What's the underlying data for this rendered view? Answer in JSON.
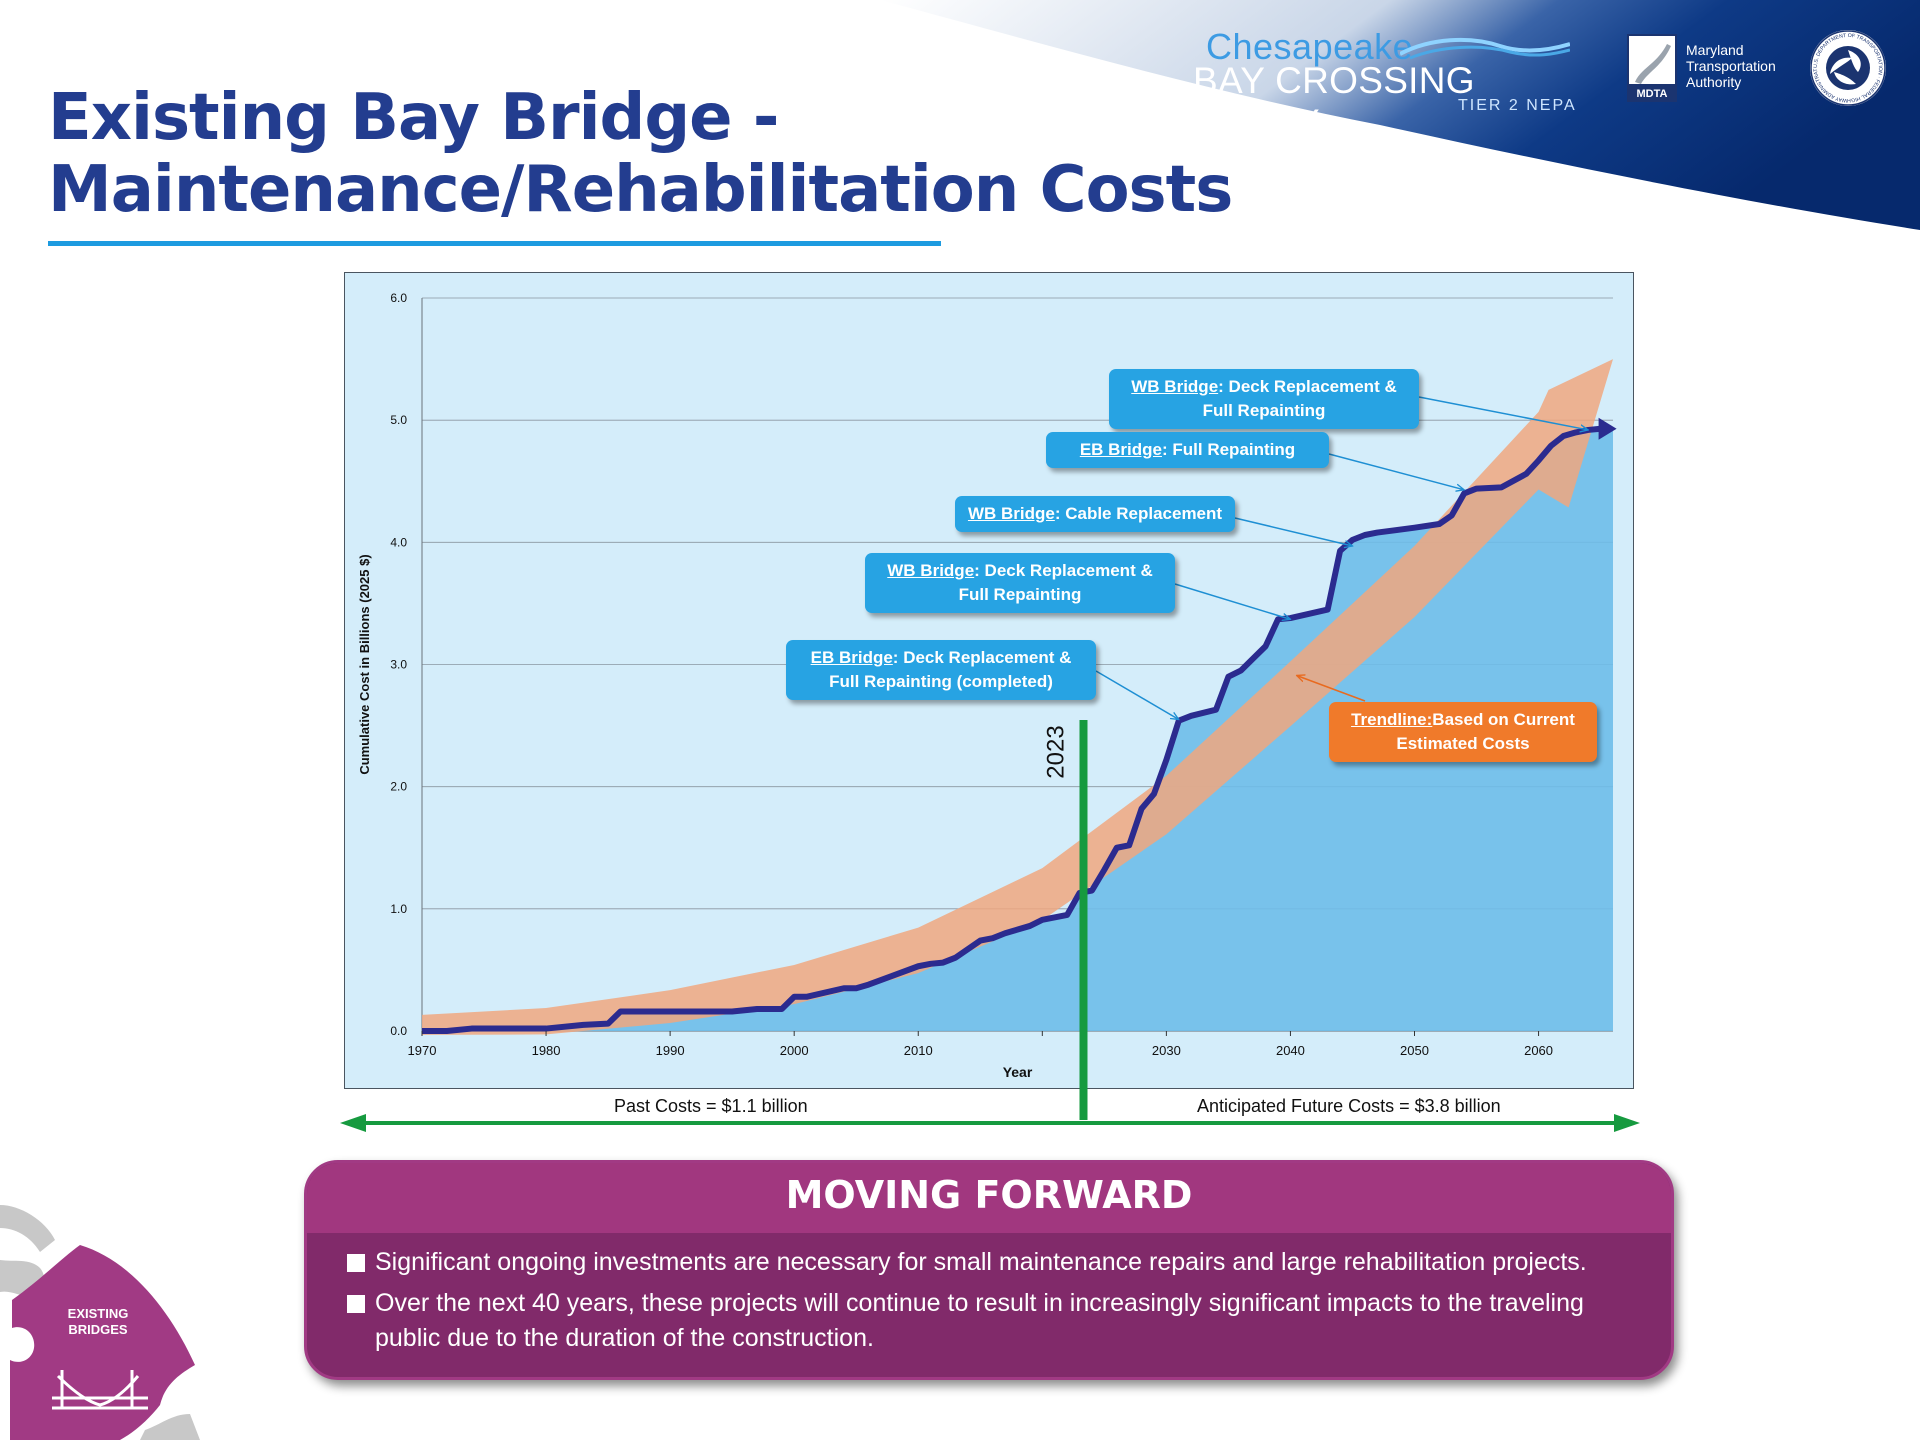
{
  "header": {
    "study_name_line1": "Chesapeake",
    "study_name_line2": "BAY CROSSING STUDY",
    "study_name_line3": "TIER 2 NEPA",
    "mdta_badge": "MDTA",
    "agency_line1": "Maryland",
    "agency_line2": "Transportation",
    "agency_line3": "Authority",
    "seal_text": "U.S. DEPARTMENT OF TRANSPORTATION · FEDERAL HIGHWAY ADMINISTRATION"
  },
  "title": {
    "line1": "Existing Bay Bridge -",
    "line2": "Maintenance/Rehabilitation Costs"
  },
  "colors": {
    "title": "#233d8f",
    "underline": "#1d9be0",
    "line": "#2b2b8f",
    "area": "#6ebde9",
    "trend": "#f0a77f",
    "marker_2023": "#169a3f",
    "callout_blue": "#27a3e3",
    "callout_orange": "#f07a2a",
    "panel": "#812a6a"
  },
  "chart_data": {
    "type": "line",
    "title": "",
    "xlabel": "Year",
    "ylabel": "Cumulative Cost in Billions (2025 $)",
    "xlim": [
      1970,
      2066
    ],
    "ylim": [
      0,
      6
    ],
    "x_ticks": [
      "1970",
      "1980",
      "1990",
      "2000",
      "2010",
      "2030",
      "2040",
      "2050",
      "2060"
    ],
    "y_ticks": [
      "0.0",
      "1.0",
      "2.0",
      "3.0",
      "4.0",
      "5.0",
      "6.0"
    ],
    "grid": true,
    "series": [
      {
        "x": [
          1970,
          1972,
          1974,
          1980,
          1983,
          1985,
          1986,
          1995,
          1997,
          1999,
          2000,
          2001,
          2004,
          2005,
          2006,
          2010,
          2011,
          2012,
          2013,
          2015,
          2016,
          2017,
          2019,
          2020,
          2022,
          2023,
          2024,
          2025,
          2026,
          2027,
          2028,
          2029,
          2030,
          2031,
          2032,
          2034,
          2035,
          2036,
          2037,
          2038,
          2039,
          2040,
          2043,
          2044,
          2045,
          2046,
          2047,
          2050,
          2052,
          2053,
          2054,
          2055,
          2057,
          2059,
          2060,
          2061,
          2062,
          2063,
          2064,
          2065
        ],
        "y": [
          0.0,
          0.0,
          0.02,
          0.02,
          0.05,
          0.06,
          0.16,
          0.16,
          0.18,
          0.18,
          0.28,
          0.28,
          0.35,
          0.35,
          0.38,
          0.53,
          0.55,
          0.56,
          0.6,
          0.74,
          0.76,
          0.8,
          0.86,
          0.91,
          0.95,
          1.13,
          1.15,
          1.32,
          1.5,
          1.52,
          1.82,
          1.94,
          2.22,
          2.54,
          2.58,
          2.63,
          2.9,
          2.95,
          3.05,
          3.15,
          3.37,
          3.38,
          3.45,
          3.93,
          4.02,
          4.06,
          4.08,
          4.12,
          4.15,
          4.22,
          4.4,
          4.44,
          4.45,
          4.56,
          4.67,
          4.79,
          4.87,
          4.9,
          4.92,
          4.93
        ]
      }
    ],
    "trendline": {
      "label_name": "Trendline:",
      "label_text": "Based on Current Estimated Costs",
      "x": [
        1970,
        1980,
        1990,
        2000,
        2010,
        2020,
        2030,
        2040,
        2050,
        2060,
        2066
      ],
      "y": [
        0.05,
        0.08,
        0.2,
        0.38,
        0.66,
        1.12,
        1.85,
        2.76,
        3.68,
        4.75,
        5.5
      ]
    },
    "marker_year": "2023",
    "annotations": [
      {
        "name": "WB Bridge",
        "text": "Deck Replacement & Full Repainting",
        "x": 2064,
        "y": 4.92
      },
      {
        "name": "EB Bridge",
        "text": "Full Repainting",
        "x": 2054,
        "y": 4.43
      },
      {
        "name": "WB Bridge",
        "text": "Cable Replacement",
        "x": 2045,
        "y": 3.97
      },
      {
        "name": "WB Bridge",
        "text": "Deck Replacement & Full Repainting",
        "x": 2040,
        "y": 3.37
      },
      {
        "name": "EB Bridge",
        "text": "Deck Replacement & Full Repainting (completed)",
        "x": 2031,
        "y": 2.55
      }
    ]
  },
  "cost_split": {
    "past": "Past Costs = $1.1 billion",
    "future": "Anticipated Future Costs = $3.8 billion"
  },
  "moving_forward": {
    "heading": "MOVING FORWARD",
    "bullets": [
      "Significant ongoing investments are necessary for small maintenance repairs and large rehabilitation projects.",
      "Over the next 40 years, these projects will continue to result in increasingly significant impacts to the traveling public due to the duration of the construction."
    ]
  },
  "corner_badge": {
    "line1": "EXISTING",
    "line2": "BRIDGES"
  }
}
